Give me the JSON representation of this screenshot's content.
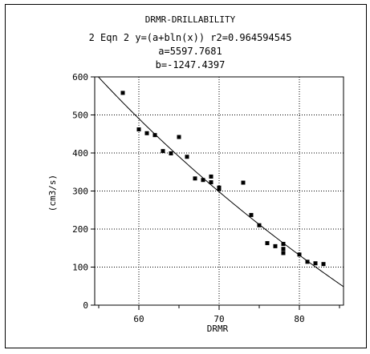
{
  "chart_data": {
    "type": "scatter",
    "title": "DRMR-DRILLABILITY",
    "subtitle_lines": [
      "2 Eqn 2 y=(a+bln(x)) r2=0.964594545",
      "a=5597.7681",
      "b=-1247.4397"
    ],
    "xlabel": "DRMR",
    "ylabel": "(cm3/s)",
    "xlim": [
      54.5,
      85.5
    ],
    "ylim": [
      0,
      600
    ],
    "x_ticks": [
      60,
      70,
      80
    ],
    "y_ticks": [
      0,
      100,
      200,
      300,
      400,
      500,
      600
    ],
    "grid": true,
    "series": [
      {
        "points": [
          [
            58,
            558
          ],
          [
            60,
            462
          ],
          [
            61,
            452
          ],
          [
            62,
            447
          ],
          [
            63,
            405
          ],
          [
            64,
            399
          ],
          [
            65,
            442
          ],
          [
            66,
            390
          ],
          [
            67,
            333
          ],
          [
            68,
            329
          ],
          [
            69,
            323
          ],
          [
            69,
            338
          ],
          [
            70,
            305
          ],
          [
            70,
            309
          ],
          [
            73,
            322
          ],
          [
            74,
            237
          ],
          [
            75,
            210
          ],
          [
            76,
            163
          ],
          [
            77,
            155
          ],
          [
            78,
            161
          ],
          [
            78,
            148
          ],
          [
            78,
            137
          ],
          [
            80,
            133
          ],
          [
            81,
            114
          ],
          [
            82,
            110
          ],
          [
            83,
            108
          ]
        ]
      }
    ],
    "fit": {
      "a": 5597.7681,
      "b": -1247.4397,
      "x_range": [
        54.5,
        85.5
      ]
    }
  }
}
